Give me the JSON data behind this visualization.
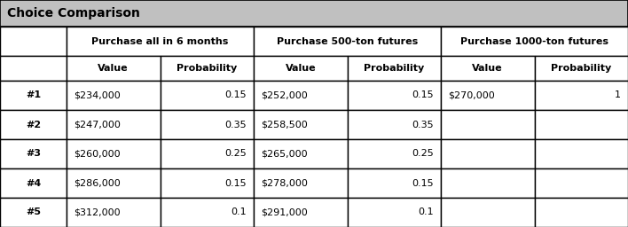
{
  "title": "Choice Comparison",
  "title_bg": "#c0c0c0",
  "group_headers": [
    "Purchase all in 6 months",
    "Purchase 500-ton futures",
    "Purchase 1000-ton futures"
  ],
  "sub_headers": [
    "Value",
    "Probability",
    "Value",
    "Probability",
    "Value",
    "Probability"
  ],
  "row_labels": [
    "#1",
    "#2",
    "#3",
    "#4",
    "#5"
  ],
  "data": [
    [
      "$234,000",
      "0.15",
      "$252,000",
      "0.15",
      "$270,000",
      "1"
    ],
    [
      "$247,000",
      "0.35",
      "$258,500",
      "0.35",
      "",
      ""
    ],
    [
      "$260,000",
      "0.25",
      "$265,000",
      "0.25",
      "",
      ""
    ],
    [
      "$286,000",
      "0.15",
      "$278,000",
      "0.15",
      "",
      ""
    ],
    [
      "$312,000",
      "0.1",
      "$291,000",
      "0.1",
      "",
      ""
    ]
  ],
  "fig_width": 7.08,
  "fig_height": 2.56,
  "dpi": 100,
  "title_fontsize": 10,
  "header_fontsize": 8,
  "data_fontsize": 8,
  "row_label_fontsize": 8
}
